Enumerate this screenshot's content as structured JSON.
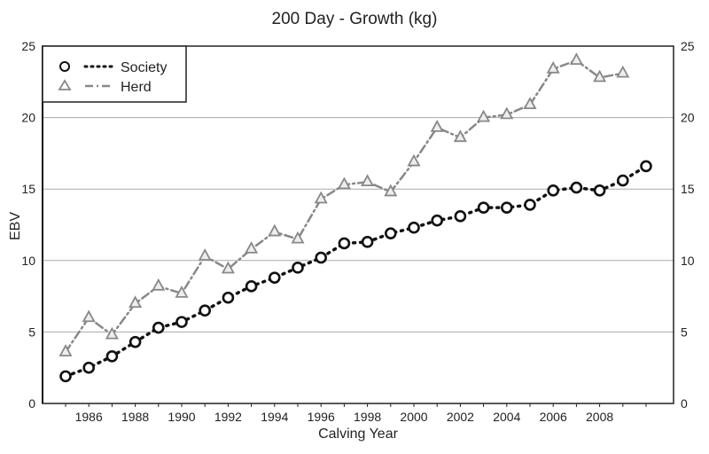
{
  "chart_data": {
    "type": "line",
    "title": "200 Day - Growth (kg)",
    "xlabel": "Calving Year",
    "ylabel": "EBV",
    "xlim": [
      1984,
      2011
    ],
    "ylim": [
      0,
      25
    ],
    "y_ticks": [
      0,
      5,
      10,
      15,
      20,
      25
    ],
    "x_ticks": [
      1986,
      1988,
      1990,
      1992,
      1994,
      1996,
      1998,
      2000,
      2002,
      2004,
      2006,
      2008
    ],
    "grid": "horizontal",
    "secondary_y_axis": true,
    "legend_position": "top-left",
    "series": [
      {
        "name": "Society",
        "marker": "circle",
        "line_style": "dotted",
        "color": "#111111",
        "x": [
          1985,
          1986,
          1987,
          1988,
          1989,
          1990,
          1991,
          1992,
          1993,
          1994,
          1995,
          1996,
          1997,
          1998,
          1999,
          2000,
          2001,
          2002,
          2003,
          2004,
          2005,
          2006,
          2007,
          2008,
          2009,
          2010
        ],
        "values": [
          1.9,
          2.5,
          3.3,
          4.3,
          5.3,
          5.7,
          6.5,
          7.4,
          8.2,
          8.8,
          9.5,
          10.2,
          11.2,
          11.3,
          11.9,
          12.3,
          12.8,
          13.1,
          13.7,
          13.7,
          13.9,
          14.9,
          15.1,
          14.9,
          15.6,
          16.6
        ]
      },
      {
        "name": "Herd",
        "marker": "triangle",
        "line_style": "dash-dot",
        "color": "#888888",
        "x": [
          1985,
          1986,
          1987,
          1988,
          1989,
          1990,
          1991,
          1992,
          1993,
          1994,
          1995,
          1996,
          1997,
          1998,
          1999,
          2000,
          2001,
          2002,
          2003,
          2004,
          2005,
          2006,
          2007,
          2008,
          2009
        ],
        "values": [
          3.6,
          6.0,
          4.8,
          7.0,
          8.2,
          7.7,
          10.3,
          9.4,
          10.8,
          12.0,
          11.5,
          14.3,
          15.3,
          15.5,
          14.8,
          16.9,
          19.3,
          18.6,
          20.0,
          20.2,
          20.9,
          23.4,
          24.0,
          22.8,
          23.1
        ]
      }
    ]
  }
}
